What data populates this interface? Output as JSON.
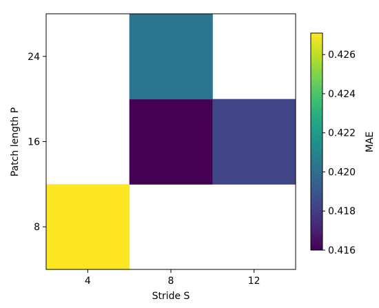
{
  "chart_data": {
    "type": "heatmap",
    "x": [
      4,
      8,
      12
    ],
    "y": [
      8,
      16,
      24
    ],
    "x_tick_labels": [
      "4",
      "8",
      "12"
    ],
    "y_tick_labels": [
      "8",
      "16",
      "24"
    ],
    "xlabel": "Stride S",
    "ylabel": "Patch length P",
    "cells": [
      {
        "x": 4,
        "y": 8,
        "value": 0.4271
      },
      {
        "x": 8,
        "y": 16,
        "value": 0.416
      },
      {
        "x": 8,
        "y": 24,
        "value": 0.4203
      },
      {
        "x": 12,
        "y": 16,
        "value": 0.4183
      }
    ],
    "empty_cells": [
      {
        "x": 4,
        "y": 16
      },
      {
        "x": 4,
        "y": 24
      },
      {
        "x": 8,
        "y": 8
      },
      {
        "x": 12,
        "y": 8
      },
      {
        "x": 12,
        "y": 24
      }
    ],
    "colorbar": {
      "label": "MAE",
      "colormap": "viridis",
      "range": [
        0.416,
        0.4271
      ],
      "ticks": [
        0.416,
        0.418,
        0.42,
        0.422,
        0.424,
        0.426
      ],
      "tick_labels": [
        "0.416",
        "0.418",
        "0.420",
        "0.422",
        "0.424",
        "0.426"
      ]
    }
  }
}
